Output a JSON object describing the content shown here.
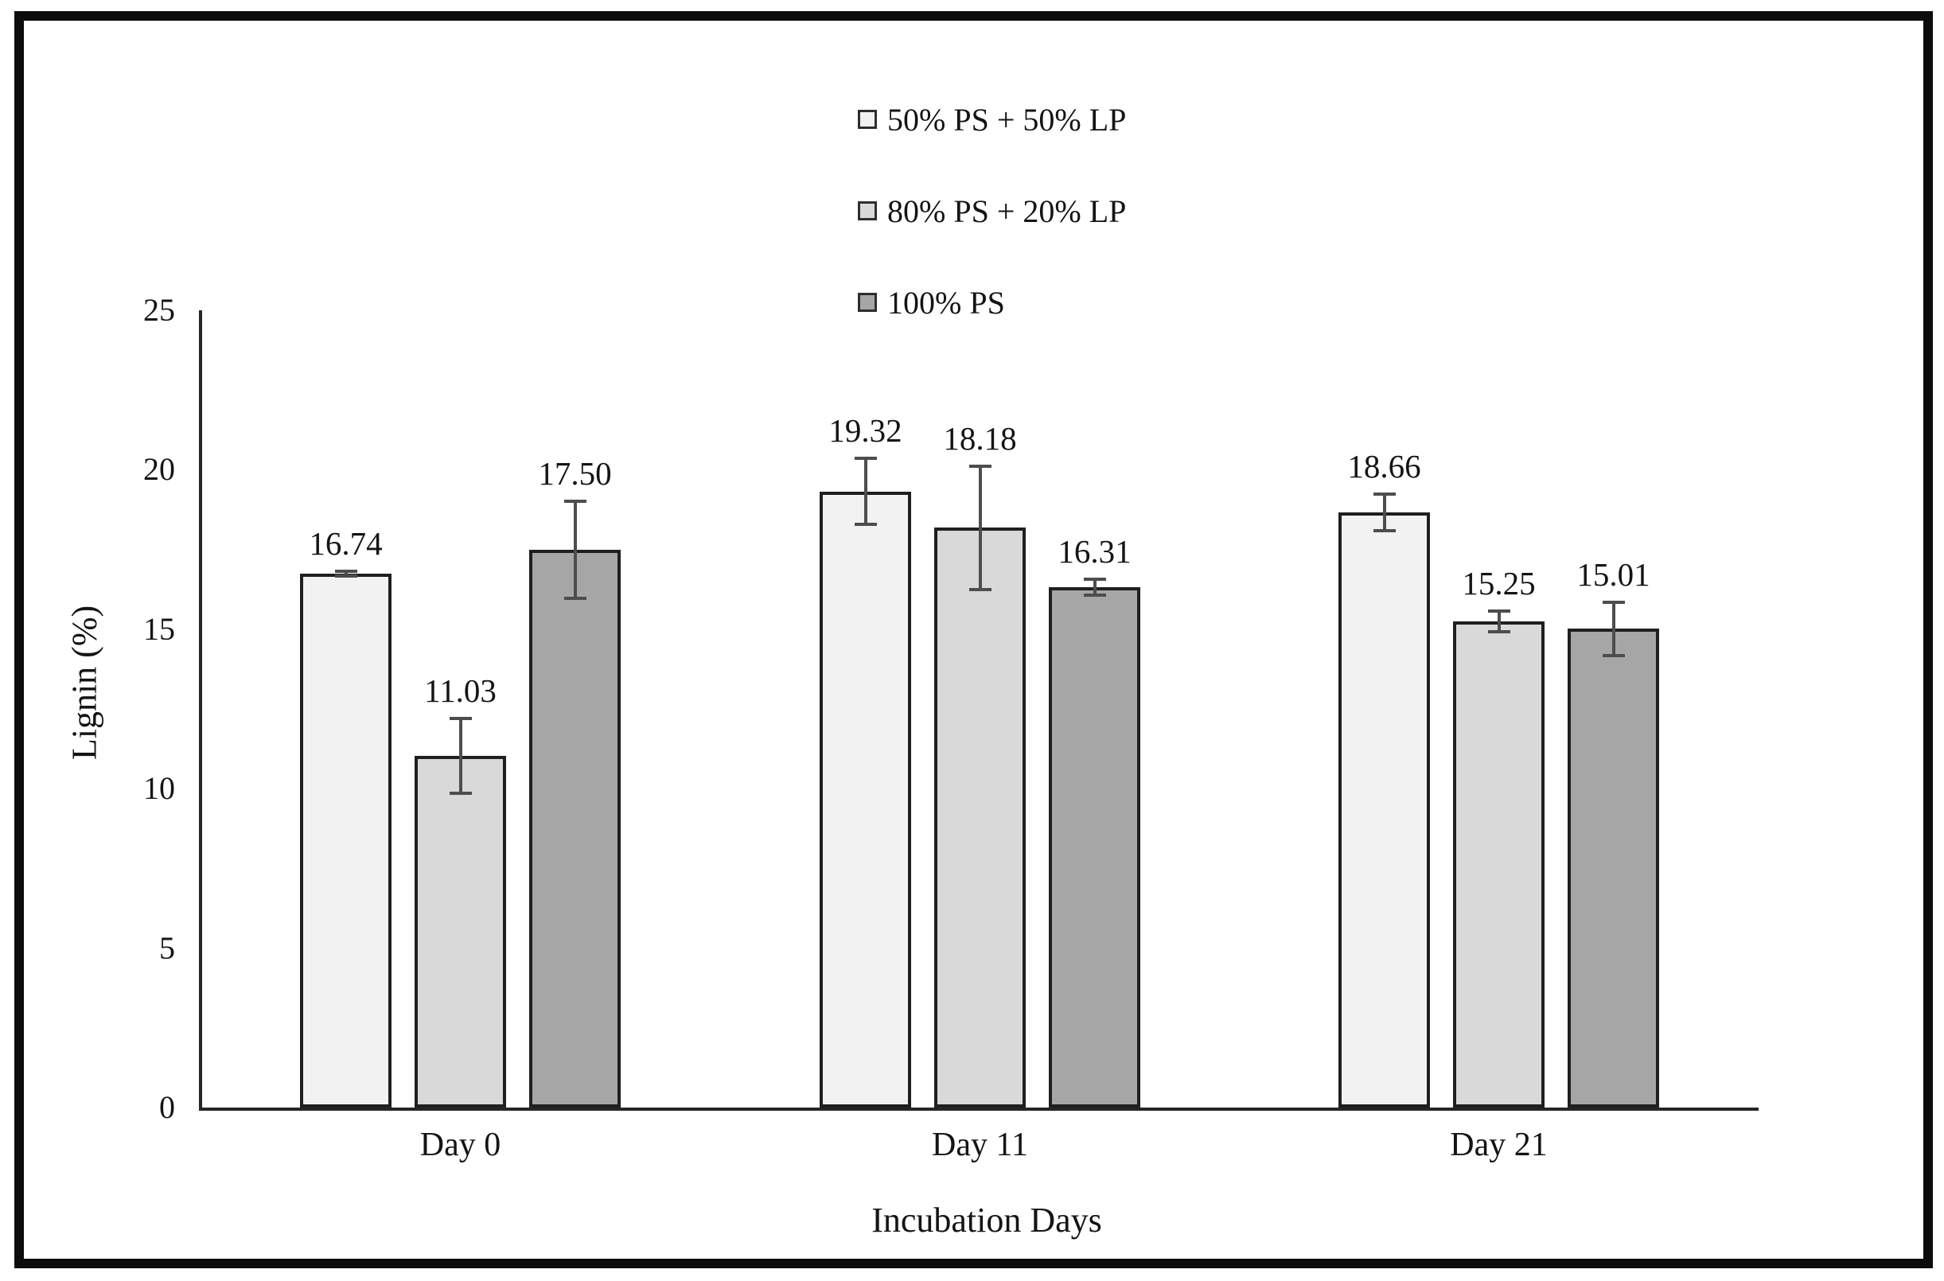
{
  "figure": {
    "background_color": "#ffffff",
    "frame_color": "#0c0c0c"
  },
  "legend": {
    "items": [
      {
        "label": "50% PS + 50% LP",
        "swatch_color": "#f2f2f2"
      },
      {
        "label": "80% PS + 20% LP",
        "swatch_color": "#d9d9d9"
      },
      {
        "label": "100% PS",
        "swatch_color": "#a6a6a6"
      }
    ]
  },
  "chart_data": {
    "type": "bar",
    "title": "",
    "xlabel": "Incubation Days",
    "ylabel": "Lignin (%)",
    "categories": [
      "Day 0",
      "Day 11",
      "Day 21"
    ],
    "series": [
      {
        "name": "50% PS + 50% LP",
        "color": "#f2f2f2",
        "values": [
          16.74,
          19.32,
          18.66
        ],
        "errors": [
          0.12,
          1.08,
          0.63
        ]
      },
      {
        "name": "80% PS + 20% LP",
        "color": "#d9d9d9",
        "values": [
          11.03,
          18.18,
          15.25
        ],
        "errors": [
          1.22,
          1.98,
          0.38
        ]
      },
      {
        "name": "100% PS",
        "color": "#a6a6a6",
        "values": [
          17.5,
          16.31,
          15.01
        ],
        "errors": [
          1.57,
          0.3,
          0.88
        ]
      }
    ],
    "value_labels": [
      [
        "16.74",
        "19.32",
        "18.66"
      ],
      [
        "11.03",
        "18.18",
        "15.25"
      ],
      [
        "17.50",
        "16.31",
        "15.01"
      ]
    ],
    "ylim": [
      0,
      25
    ],
    "yticks": [
      0,
      5,
      10,
      15,
      20,
      25
    ],
    "grid": false,
    "legend_position": "top-center vertical stack",
    "bar_edge_color": "#1f1f1f",
    "error_bar_color": "#4d4d4d",
    "axis_color": "#262626",
    "text_color": "#141414"
  }
}
